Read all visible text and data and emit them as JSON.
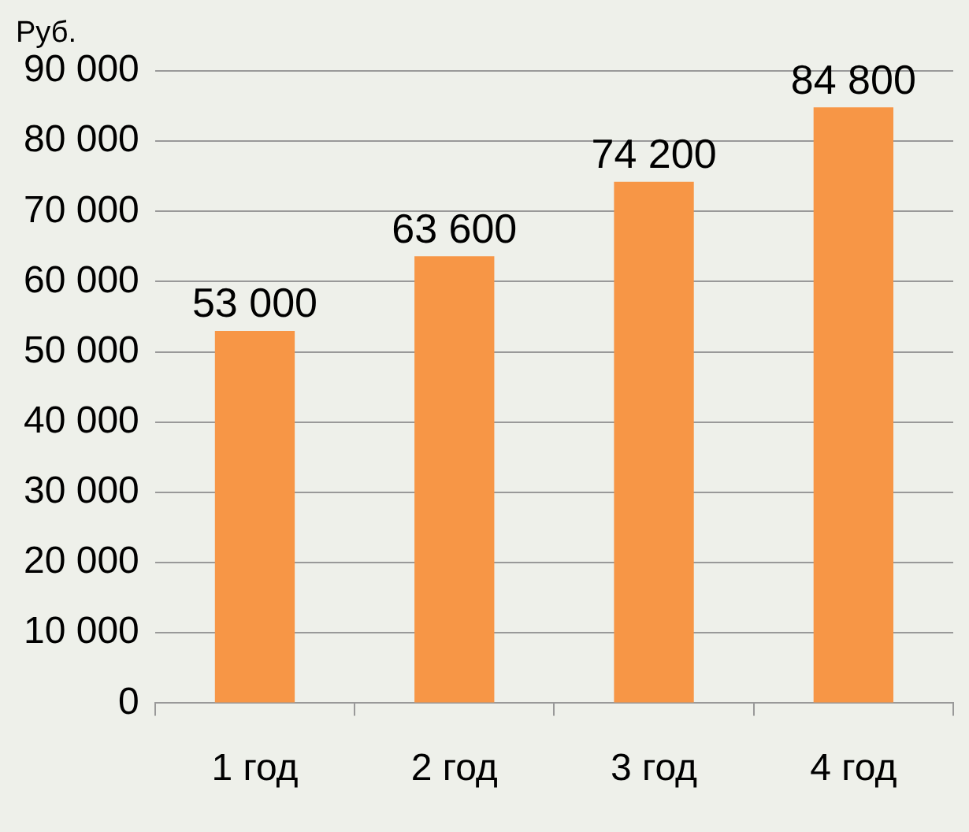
{
  "chart_data": {
    "type": "bar",
    "ylabel": "Руб.",
    "categories": [
      "1 год",
      "2 год",
      "3 год",
      "4 год"
    ],
    "values": [
      53000,
      63600,
      74200,
      84800
    ],
    "color": "#f79646",
    "value_labels": [
      "53 000",
      "63 600",
      "74 200",
      "84 800"
    ],
    "ylim": [
      0,
      90000
    ],
    "yticks": [
      {
        "value": 0,
        "label": "0"
      },
      {
        "value": 10000,
        "label": "10 000"
      },
      {
        "value": 20000,
        "label": "20 000"
      },
      {
        "value": 30000,
        "label": "30 000"
      },
      {
        "value": 40000,
        "label": "40 000"
      },
      {
        "value": 50000,
        "label": "50 000"
      },
      {
        "value": 60000,
        "label": "60 000"
      },
      {
        "value": 70000,
        "label": "70 000"
      },
      {
        "value": 80000,
        "label": "80 000"
      },
      {
        "value": 90000,
        "label": "90 000"
      }
    ],
    "grid": "y",
    "legend": false
  }
}
